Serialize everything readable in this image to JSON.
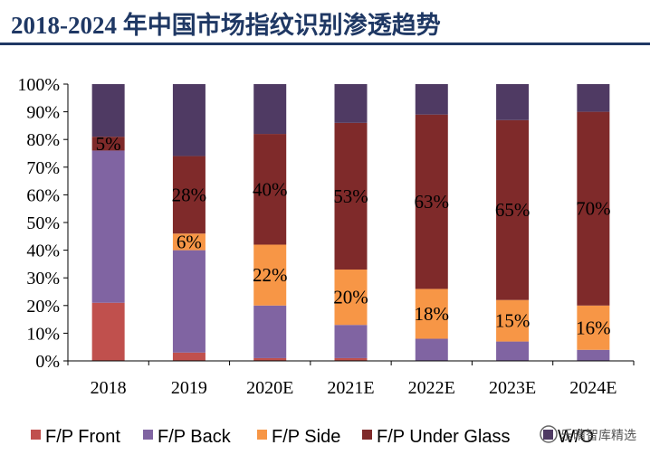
{
  "title": "2018-2024 年中国市场指纹识别渗透趋势",
  "watermark": "乐晴智库精选",
  "chart_data": {
    "type": "bar",
    "stacked": true,
    "categories": [
      "2018",
      "2019",
      "2020E",
      "2021E",
      "2022E",
      "2023E",
      "2024E"
    ],
    "ylim": [
      0,
      100
    ],
    "yticks": [
      "0%",
      "10%",
      "20%",
      "30%",
      "40%",
      "50%",
      "60%",
      "70%",
      "80%",
      "90%",
      "100%"
    ],
    "series": [
      {
        "name": "F/P Front",
        "color": "#c0504d",
        "values": [
          21,
          3,
          1,
          1,
          0,
          0,
          0
        ]
      },
      {
        "name": "F/P Back",
        "color": "#8064a2",
        "values": [
          55,
          37,
          19,
          12,
          8,
          7,
          4
        ]
      },
      {
        "name": "F/P Side",
        "color": "#f79646",
        "values": [
          0,
          6,
          22,
          20,
          18,
          15,
          16
        ]
      },
      {
        "name": "F/P Under Glass",
        "color": "#7f2a2a",
        "values": [
          5,
          28,
          40,
          53,
          63,
          65,
          70
        ]
      },
      {
        "name": "W/O",
        "color": "#4f3a63",
        "values": [
          19,
          26,
          18,
          14,
          11,
          13,
          10
        ]
      }
    ],
    "data_labels": [
      {
        "series": "F/P Under Glass",
        "labels": [
          "5%",
          "28%",
          "40%",
          "53%",
          "63%",
          "65%",
          "70%"
        ]
      },
      {
        "series": "F/P Side",
        "labels": [
          "",
          "6%",
          "22%",
          "20%",
          "18%",
          "15%",
          "16%"
        ]
      }
    ],
    "legend_position": "bottom"
  }
}
